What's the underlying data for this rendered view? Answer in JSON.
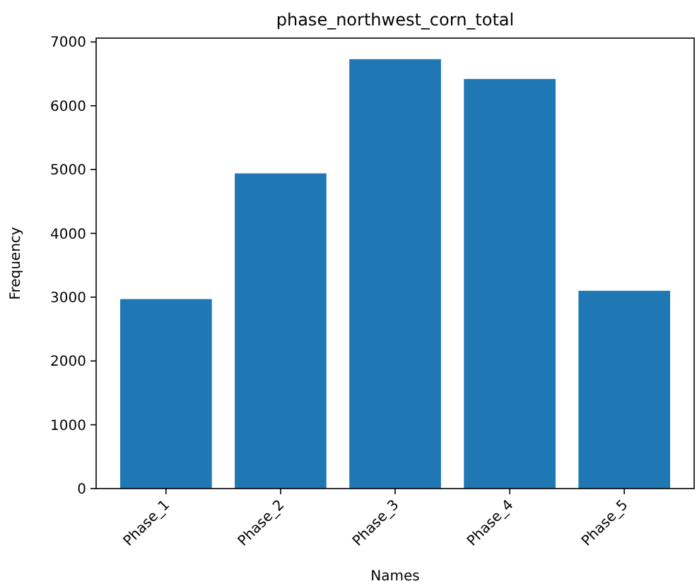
{
  "chart_data": {
    "type": "bar",
    "title": "phase_northwest_corn_total",
    "xlabel": "Names",
    "ylabel": "Frequency",
    "categories": [
      "Phase_1",
      "Phase_2",
      "Phase_3",
      "Phase_4",
      "Phase_5"
    ],
    "values": [
      2970,
      4940,
      6730,
      6420,
      3100
    ],
    "color": "#1f77b4",
    "ylim": [
      0,
      7060
    ],
    "yticks": [
      0,
      1000,
      2000,
      3000,
      4000,
      5000,
      6000,
      7000
    ],
    "grid": false
  }
}
